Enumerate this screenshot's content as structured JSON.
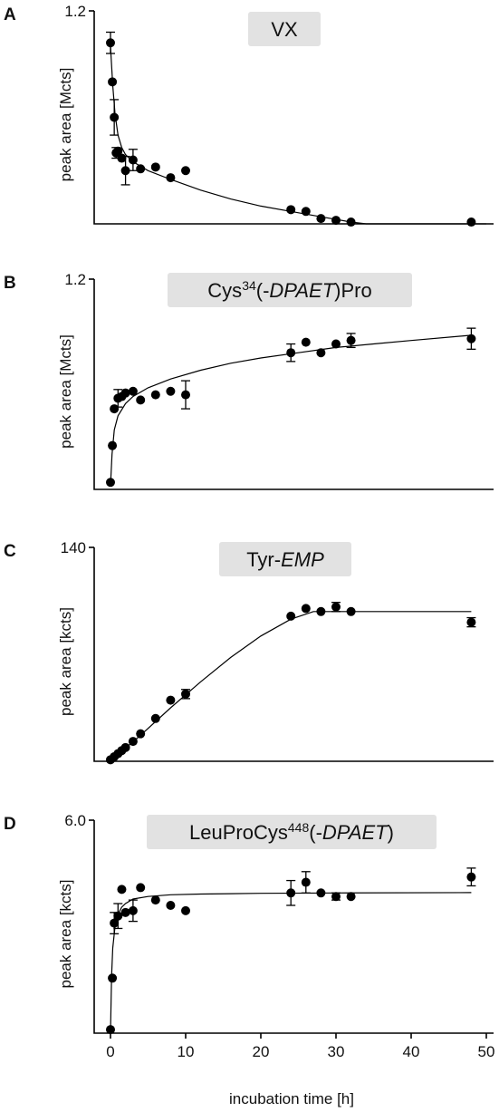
{
  "chart_data": [
    {
      "type": "scatter",
      "panel": "A",
      "title": "VX",
      "ylabel": "peak area [Mcts]",
      "ytick_top": "1.2",
      "ylim": [
        0,
        1.2
      ],
      "xlim": [
        0,
        50
      ],
      "show_x_ticks": false,
      "points": [
        {
          "x": 0,
          "y": 1.02,
          "err": 0.06
        },
        {
          "x": 0.25,
          "y": 0.8,
          "err": 0
        },
        {
          "x": 0.5,
          "y": 0.6,
          "err": 0.1
        },
        {
          "x": 0.75,
          "y": 0.4,
          "err": 0.03
        },
        {
          "x": 1,
          "y": 0.41,
          "err": 0
        },
        {
          "x": 1.5,
          "y": 0.37,
          "err": 0
        },
        {
          "x": 2,
          "y": 0.3,
          "err": 0.08
        },
        {
          "x": 3,
          "y": 0.36,
          "err": 0.06
        },
        {
          "x": 4,
          "y": 0.31,
          "err": 0
        },
        {
          "x": 6,
          "y": 0.32,
          "err": 0
        },
        {
          "x": 8,
          "y": 0.26,
          "err": 0
        },
        {
          "x": 10,
          "y": 0.3,
          "err": 0
        },
        {
          "x": 24,
          "y": 0.08,
          "err": 0
        },
        {
          "x": 26,
          "y": 0.07,
          "err": 0
        },
        {
          "x": 28,
          "y": 0.03,
          "err": 0
        },
        {
          "x": 30,
          "y": 0.02,
          "err": 0
        },
        {
          "x": 32,
          "y": 0.01,
          "err": 0
        },
        {
          "x": 48,
          "y": 0.01,
          "err": 0
        }
      ],
      "fit": [
        [
          0,
          1.0
        ],
        [
          0.3,
          0.78
        ],
        [
          0.6,
          0.62
        ],
        [
          1,
          0.5
        ],
        [
          1.5,
          0.43
        ],
        [
          2,
          0.39
        ],
        [
          3,
          0.35
        ],
        [
          5,
          0.3
        ],
        [
          8,
          0.25
        ],
        [
          12,
          0.19
        ],
        [
          16,
          0.14
        ],
        [
          20,
          0.1
        ],
        [
          24,
          0.07
        ],
        [
          28,
          0.04
        ],
        [
          32,
          0.01
        ],
        [
          34,
          0.0
        ],
        [
          50,
          0.0
        ]
      ]
    },
    {
      "type": "scatter",
      "panel": "B",
      "title_main": "Cys",
      "title_sup": "34",
      "title_pre": "(-",
      "title_ital": "DPAET",
      "title_post": ")Pro",
      "ylabel": "peak area [Mcts]",
      "ytick_top": "1.2",
      "ylim": [
        0,
        1.2
      ],
      "xlim": [
        0,
        50
      ],
      "show_x_ticks": false,
      "points": [
        {
          "x": 0,
          "y": 0.04,
          "err": 0
        },
        {
          "x": 0.25,
          "y": 0.25,
          "err": 0
        },
        {
          "x": 0.5,
          "y": 0.46,
          "err": 0
        },
        {
          "x": 1,
          "y": 0.52,
          "err": 0.05
        },
        {
          "x": 1.5,
          "y": 0.53,
          "err": 0
        },
        {
          "x": 2,
          "y": 0.55,
          "err": 0
        },
        {
          "x": 3,
          "y": 0.56,
          "err": 0
        },
        {
          "x": 4,
          "y": 0.51,
          "err": 0
        },
        {
          "x": 6,
          "y": 0.54,
          "err": 0
        },
        {
          "x": 8,
          "y": 0.56,
          "err": 0
        },
        {
          "x": 10,
          "y": 0.54,
          "err": 0.08
        },
        {
          "x": 24,
          "y": 0.78,
          "err": 0.05
        },
        {
          "x": 26,
          "y": 0.84,
          "err": 0
        },
        {
          "x": 28,
          "y": 0.78,
          "err": 0
        },
        {
          "x": 30,
          "y": 0.83,
          "err": 0
        },
        {
          "x": 32,
          "y": 0.85,
          "err": 0.04
        },
        {
          "x": 48,
          "y": 0.86,
          "err": 0.06
        }
      ],
      "fit": [
        [
          0,
          0.02
        ],
        [
          0.2,
          0.2
        ],
        [
          0.5,
          0.34
        ],
        [
          1,
          0.42
        ],
        [
          2,
          0.49
        ],
        [
          3,
          0.53
        ],
        [
          5,
          0.58
        ],
        [
          8,
          0.63
        ],
        [
          12,
          0.68
        ],
        [
          16,
          0.72
        ],
        [
          20,
          0.75
        ],
        [
          25,
          0.78
        ],
        [
          30,
          0.81
        ],
        [
          35,
          0.83
        ],
        [
          40,
          0.85
        ],
        [
          48,
          0.88
        ]
      ]
    },
    {
      "type": "scatter",
      "panel": "C",
      "title_main": "Tyr-",
      "title_ital": "EMP",
      "ylabel": "peak area [kcts]",
      "ytick_top": "140",
      "ylim": [
        0,
        140
      ],
      "xlim": [
        0,
        50
      ],
      "show_x_ticks": false,
      "points": [
        {
          "x": 0,
          "y": 1,
          "err": 0
        },
        {
          "x": 0.5,
          "y": 3,
          "err": 0
        },
        {
          "x": 1,
          "y": 5,
          "err": 0
        },
        {
          "x": 1.5,
          "y": 7,
          "err": 0
        },
        {
          "x": 2,
          "y": 9,
          "err": 0
        },
        {
          "x": 3,
          "y": 13,
          "err": 0
        },
        {
          "x": 4,
          "y": 18,
          "err": 0
        },
        {
          "x": 6,
          "y": 28,
          "err": 0
        },
        {
          "x": 8,
          "y": 40,
          "err": 0
        },
        {
          "x": 10,
          "y": 44,
          "err": 3
        },
        {
          "x": 24,
          "y": 95,
          "err": 0
        },
        {
          "x": 26,
          "y": 100,
          "err": 0
        },
        {
          "x": 28,
          "y": 98,
          "err": 0
        },
        {
          "x": 30,
          "y": 101,
          "err": 3
        },
        {
          "x": 32,
          "y": 98,
          "err": 0
        },
        {
          "x": 48,
          "y": 91,
          "err": 3
        }
      ],
      "fit": [
        [
          0,
          0
        ],
        [
          4,
          17
        ],
        [
          8,
          35
        ],
        [
          12,
          52
        ],
        [
          16,
          68
        ],
        [
          20,
          82
        ],
        [
          24,
          93
        ],
        [
          27,
          98
        ],
        [
          30,
          98
        ],
        [
          48,
          98
        ]
      ]
    },
    {
      "type": "scatter",
      "panel": "D",
      "title_main": "LeuProCys",
      "title_sup": "448",
      "title_pre": "(-",
      "title_ital": "DPAET",
      "title_post": ")",
      "ylabel": "peak area [kcts]",
      "ytick_top": "6.0",
      "ylim": [
        0,
        6.0
      ],
      "xlim": [
        0,
        50
      ],
      "show_x_ticks": true,
      "xticks": [
        0,
        10,
        20,
        30,
        40,
        50
      ],
      "xlabel": "incubation time [h]",
      "points": [
        {
          "x": 0,
          "y": 0.1,
          "err": 0
        },
        {
          "x": 0.25,
          "y": 1.55,
          "err": 0
        },
        {
          "x": 0.5,
          "y": 3.1,
          "err": 0.3
        },
        {
          "x": 1,
          "y": 3.3,
          "err": 0.35
        },
        {
          "x": 1.5,
          "y": 4.05,
          "err": 0
        },
        {
          "x": 2,
          "y": 3.4,
          "err": 0
        },
        {
          "x": 3,
          "y": 3.45,
          "err": 0.3
        },
        {
          "x": 4,
          "y": 4.1,
          "err": 0
        },
        {
          "x": 6,
          "y": 3.75,
          "err": 0
        },
        {
          "x": 8,
          "y": 3.6,
          "err": 0
        },
        {
          "x": 10,
          "y": 3.45,
          "err": 0
        },
        {
          "x": 24,
          "y": 3.95,
          "err": 0.35
        },
        {
          "x": 26,
          "y": 4.25,
          "err": 0.3
        },
        {
          "x": 28,
          "y": 3.95,
          "err": 0
        },
        {
          "x": 30,
          "y": 3.85,
          "err": 0.1
        },
        {
          "x": 32,
          "y": 3.85,
          "err": 0
        },
        {
          "x": 48,
          "y": 4.4,
          "err": 0.25
        }
      ],
      "fit": [
        [
          0,
          0
        ],
        [
          0.15,
          1.6
        ],
        [
          0.3,
          2.4
        ],
        [
          0.6,
          3.0
        ],
        [
          1,
          3.35
        ],
        [
          1.5,
          3.55
        ],
        [
          2,
          3.65
        ],
        [
          3,
          3.78
        ],
        [
          5,
          3.85
        ],
        [
          8,
          3.9
        ],
        [
          12,
          3.92
        ],
        [
          20,
          3.94
        ],
        [
          30,
          3.95
        ],
        [
          48,
          3.96
        ]
      ]
    }
  ]
}
